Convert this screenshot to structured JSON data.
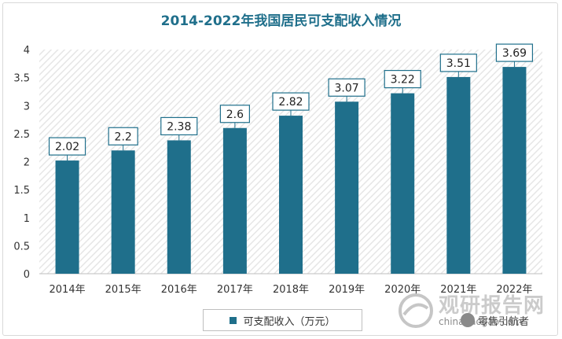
{
  "chart_data": {
    "type": "bar",
    "title": "2014-2022年我国居民可支配收入情况",
    "categories": [
      "2014年",
      "2015年",
      "2016年",
      "2017年",
      "2018年",
      "2019年",
      "2020年",
      "2021年",
      "2022年"
    ],
    "series": [
      {
        "name": "可支配收入（万元）",
        "values": [
          2.02,
          2.2,
          2.38,
          2.6,
          2.82,
          3.07,
          3.22,
          3.51,
          3.69
        ],
        "color": "#1f6f8b"
      }
    ],
    "data_labels": [
      "2.02",
      "2.2",
      "2.38",
      "2.6",
      "2.82",
      "3.07",
      "3.22",
      "3.51",
      "3.69"
    ],
    "yticks": [
      "0",
      "0.5",
      "1",
      "1.5",
      "2",
      "2.5",
      "3",
      "3.5",
      "4"
    ],
    "ylim": [
      0,
      4
    ],
    "grid": false,
    "plot_background": "hatched",
    "legend_position": "bottom",
    "xlabel": "",
    "ylabel": ""
  },
  "watermark": {
    "brand": "观研报告网",
    "url": "chinabaogao.com",
    "badge": "零售引航者"
  }
}
